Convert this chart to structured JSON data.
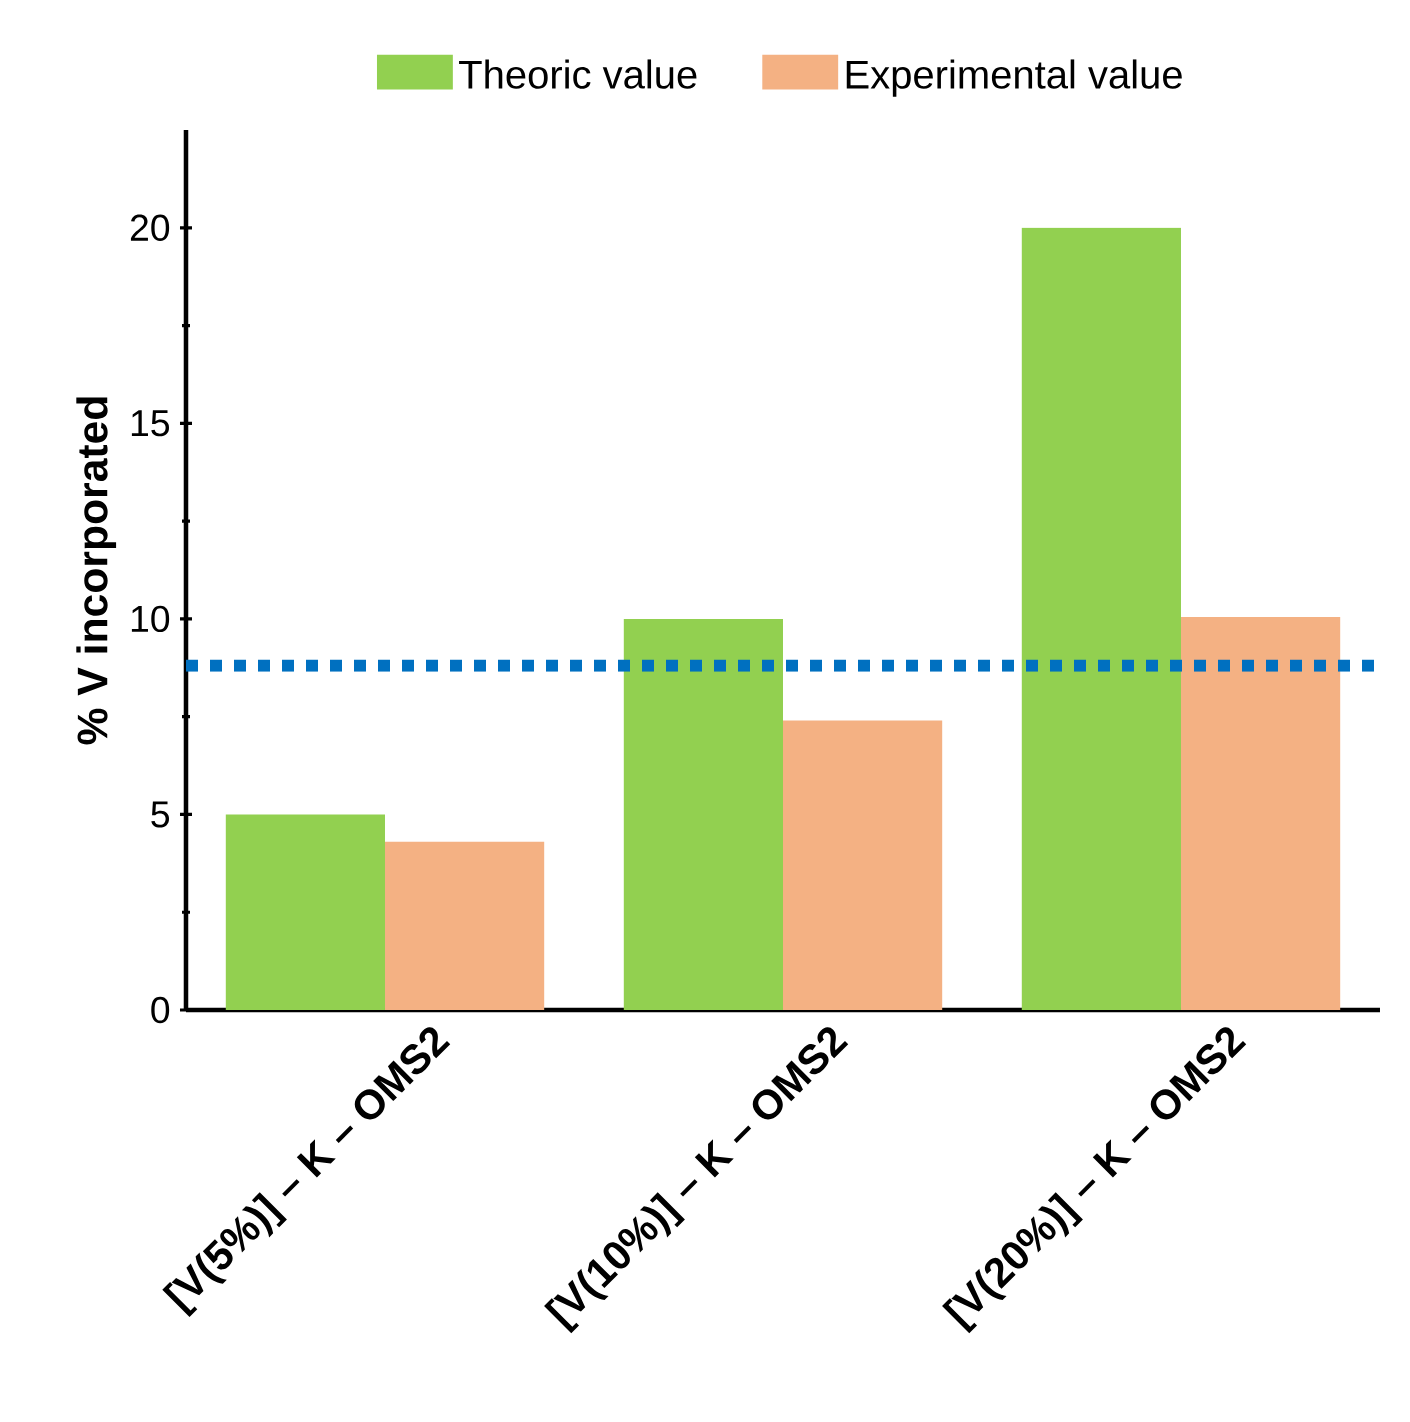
{
  "chart_data": {
    "type": "bar",
    "ylabel": "% V incorporated",
    "categories": [
      "[V(5%)] – K – OMS2",
      "[V(10%)] – K – OMS2",
      "[V(20%)] – K – OMS2"
    ],
    "series": [
      {
        "name": "Theoric value",
        "color": "#92d050",
        "values": [
          5,
          10,
          20
        ]
      },
      {
        "name": "Experimental value",
        "color": "#f4b183",
        "values": [
          4.3,
          7.4,
          10.05
        ]
      }
    ],
    "ylim": [
      0,
      22.5
    ],
    "yticks": [
      0,
      5,
      10,
      15,
      20
    ],
    "ref_lines": [
      {
        "axis": "y",
        "value": 8.8,
        "color": "#0070c0",
        "line_style": "dotted"
      }
    ],
    "legend": "top"
  }
}
